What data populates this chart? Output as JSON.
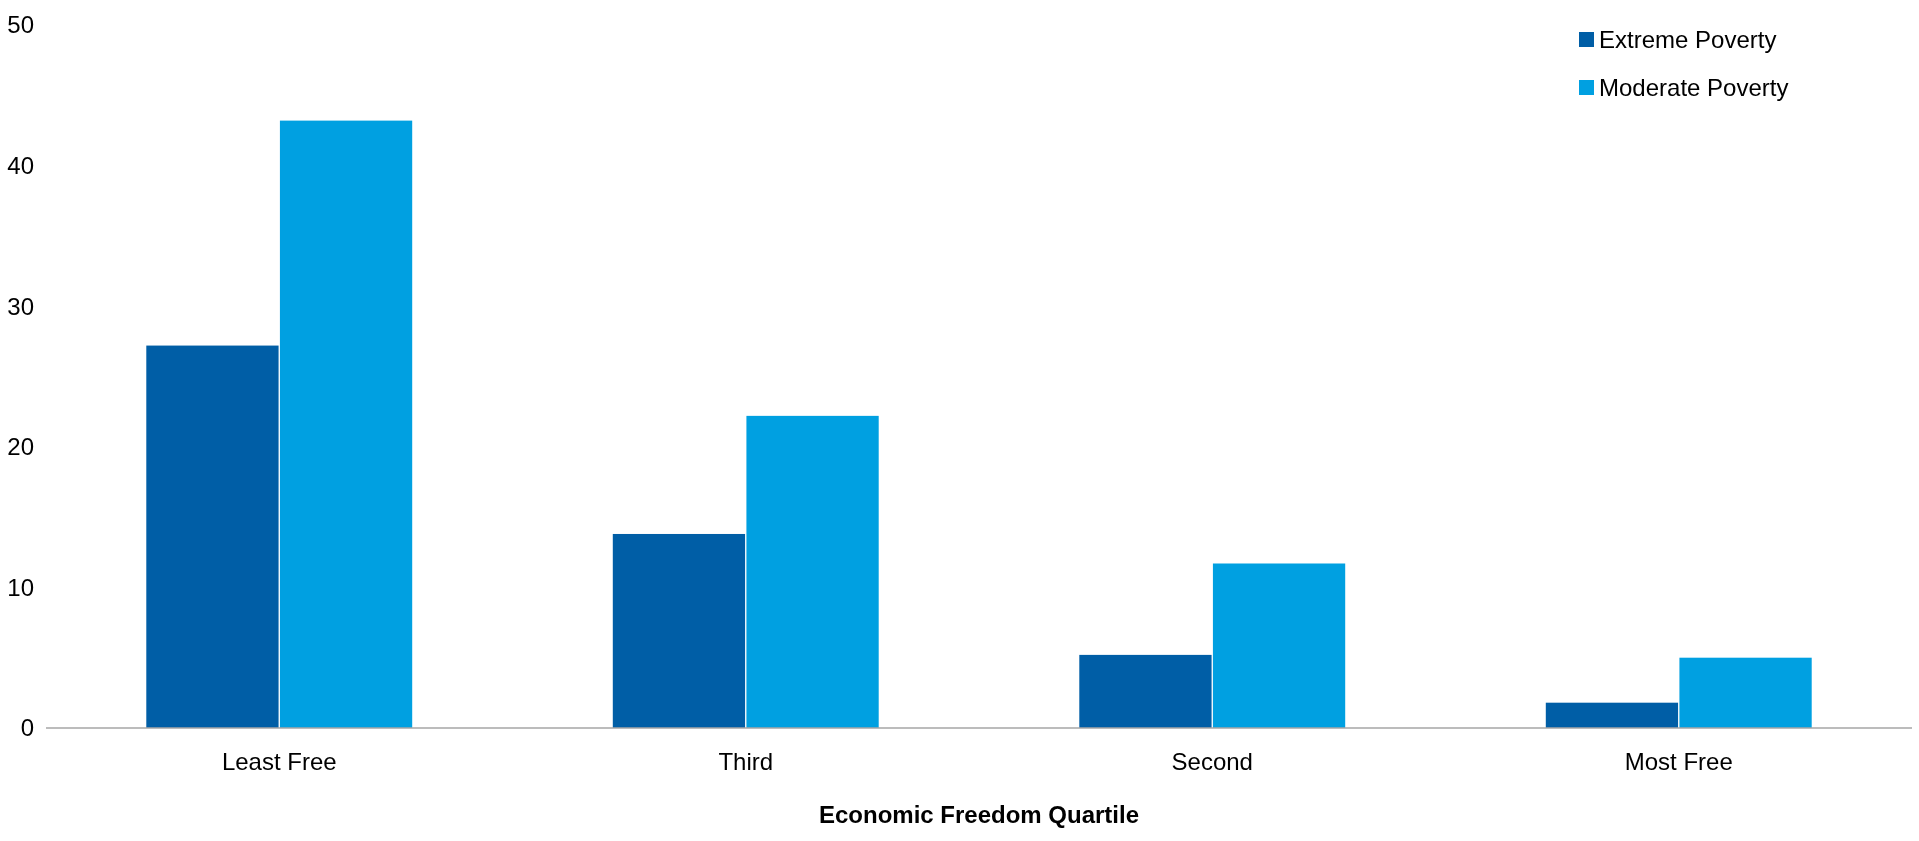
{
  "chart_data": {
    "type": "bar",
    "xlabel": "Economic Freedom Quartile",
    "categories": [
      "Least Free",
      "Third",
      "Second",
      "Most Free"
    ],
    "series": [
      {
        "name": "Extreme Poverty",
        "color": "#005ea6",
        "values": [
          27.2,
          13.8,
          5.2,
          1.8
        ]
      },
      {
        "name": "Moderate Poverty",
        "color": "#00a0e1",
        "values": [
          43.2,
          22.2,
          11.7,
          5.0
        ]
      }
    ],
    "ylim": [
      0,
      50
    ],
    "yticks": [
      0,
      10,
      20,
      30,
      40,
      50
    ],
    "grid": false,
    "legend": "top right"
  }
}
